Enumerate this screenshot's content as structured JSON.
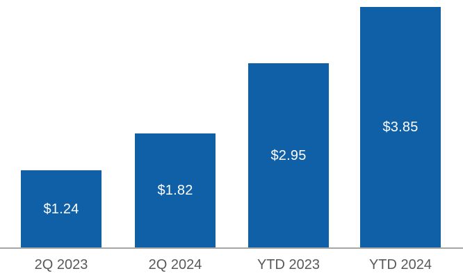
{
  "chart_data": {
    "type": "bar",
    "title": "",
    "xlabel": "",
    "ylabel": "",
    "categories": [
      "2Q 2023",
      "2Q 2024",
      "YTD 2023",
      "YTD 2024"
    ],
    "values": [
      1.24,
      1.82,
      2.95,
      3.85
    ],
    "data_labels": [
      "$1.24",
      "$1.82",
      "$2.95",
      "$3.85"
    ],
    "ylim": [
      0,
      3.85
    ],
    "grid": false,
    "legend": false,
    "data_label_position": "inside-center",
    "colors": {
      "bar": "#1060A8",
      "data_label": "#FFFFFF",
      "category_label": "#595959",
      "axis_line": "#A6A6A6",
      "background": "#FFFFFF"
    }
  }
}
